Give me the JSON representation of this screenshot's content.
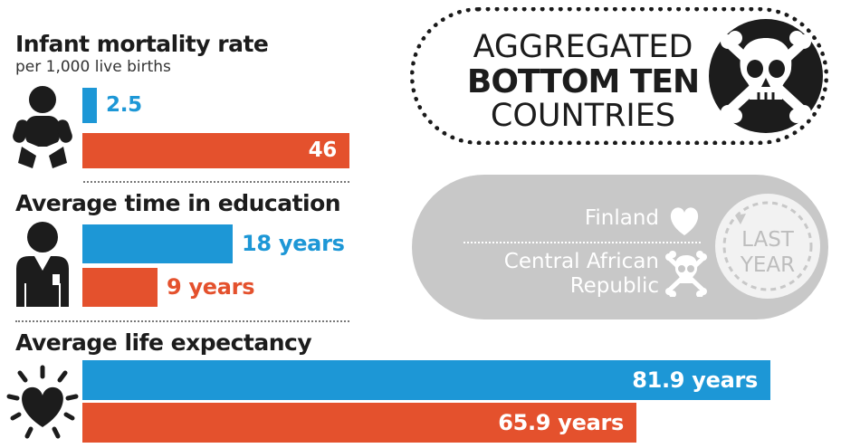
{
  "colors": {
    "this_year": "#1d97d6",
    "last_year": "#e4512d",
    "dark": "#1c1c1c",
    "legend_grey": "#c8c8c8"
  },
  "badge": {
    "line1": "AGGREGATED",
    "line2": "BOTTOM TEN",
    "line3": "COUNTRIES",
    "icon": "skull-crossbones-icon"
  },
  "legend": {
    "country_a": "Finland",
    "country_a_icon": "heart-icon",
    "country_b_line1": "Central African",
    "country_b_line2": "Republic",
    "country_b_icon": "skull-crossbones-icon",
    "last_year_line1": "LAST",
    "last_year_line2": "YEAR"
  },
  "chart_data": [
    {
      "type": "bar",
      "title": "Infant mortality rate",
      "subtitle": "per 1,000 live births",
      "icon": "baby-icon",
      "series": [
        {
          "name": "Finland",
          "value": 2.5,
          "label": "2.5"
        },
        {
          "name": "Central African Republic",
          "value": 46,
          "label": "46"
        }
      ]
    },
    {
      "type": "bar",
      "title": "Average time in education",
      "icon": "graduate-icon",
      "series": [
        {
          "name": "Finland",
          "value": 18,
          "label": "18 years"
        },
        {
          "name": "Central African Republic",
          "value": 9,
          "label": "9 years"
        }
      ]
    },
    {
      "type": "bar",
      "title": "Average life expectancy",
      "icon": "heart-icon",
      "series": [
        {
          "name": "Finland",
          "value": 81.9,
          "label": "81.9 years"
        },
        {
          "name": "Central African Republic",
          "value": 65.9,
          "label": "65.9 years"
        }
      ]
    }
  ]
}
